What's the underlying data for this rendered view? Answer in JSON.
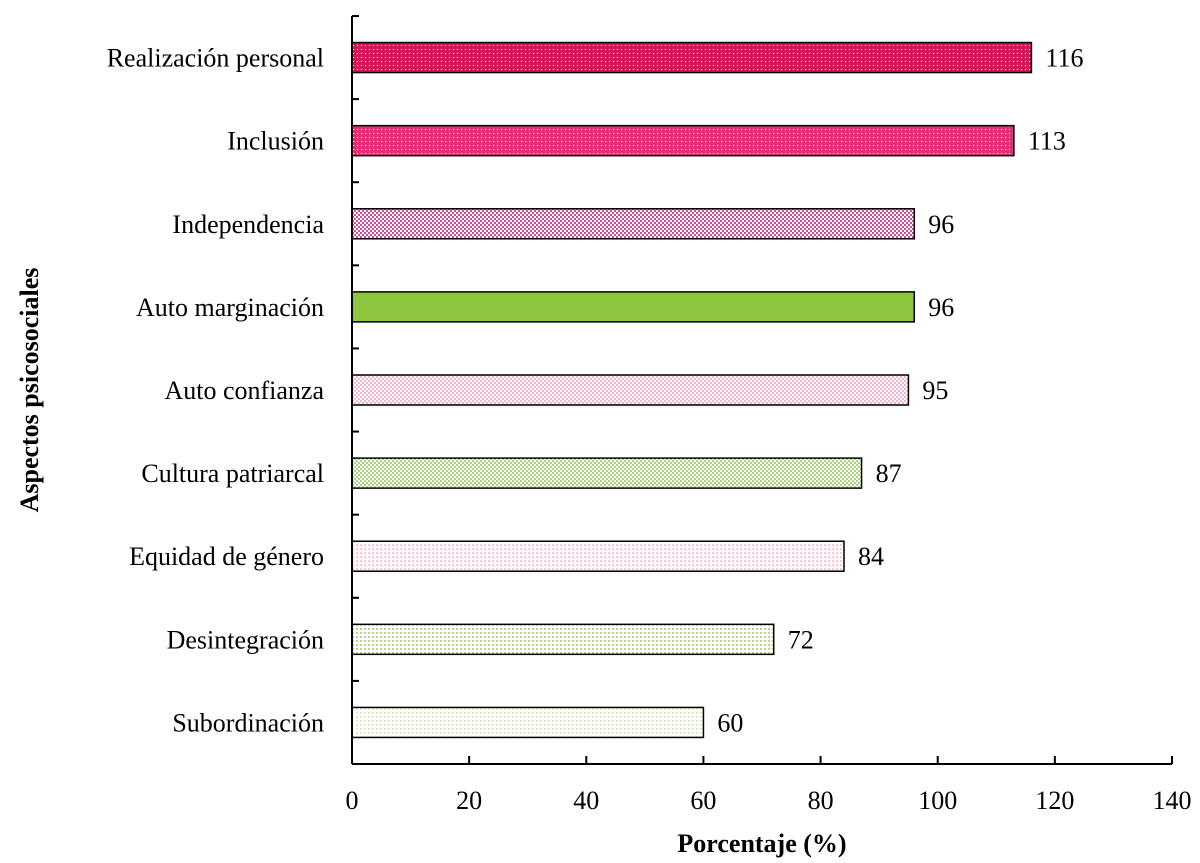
{
  "chart_data": {
    "type": "bar",
    "orientation": "horizontal",
    "title": "",
    "xlabel": "Porcentaje (%)",
    "ylabel": "Aspectos psicosociales",
    "xlim": [
      0,
      140
    ],
    "xticks": [
      0,
      20,
      40,
      60,
      80,
      100,
      120,
      140
    ],
    "grid": false,
    "categories": [
      "Realización personal",
      "Inclusión",
      "Independencia",
      "Auto marginación",
      "Auto confianza",
      "Cultura patriarcal",
      "Equidad de género",
      "Desintegración",
      "Subordinación"
    ],
    "values": [
      116,
      113,
      96,
      96,
      95,
      87,
      84,
      72,
      60
    ],
    "bar_colors": [
      "#d6175e",
      "#e8307a",
      "#d64a98",
      "#8cc63f",
      "#f2b5d4",
      "#a9d37a",
      "#f6c8dc",
      "#b5d98a",
      "#c7e3a3"
    ],
    "bar_patterns": [
      "dots-dense",
      "dots-dense",
      "checker",
      "solid",
      "checker",
      "checker",
      "dots-light",
      "dots",
      "dots-sparse"
    ]
  }
}
